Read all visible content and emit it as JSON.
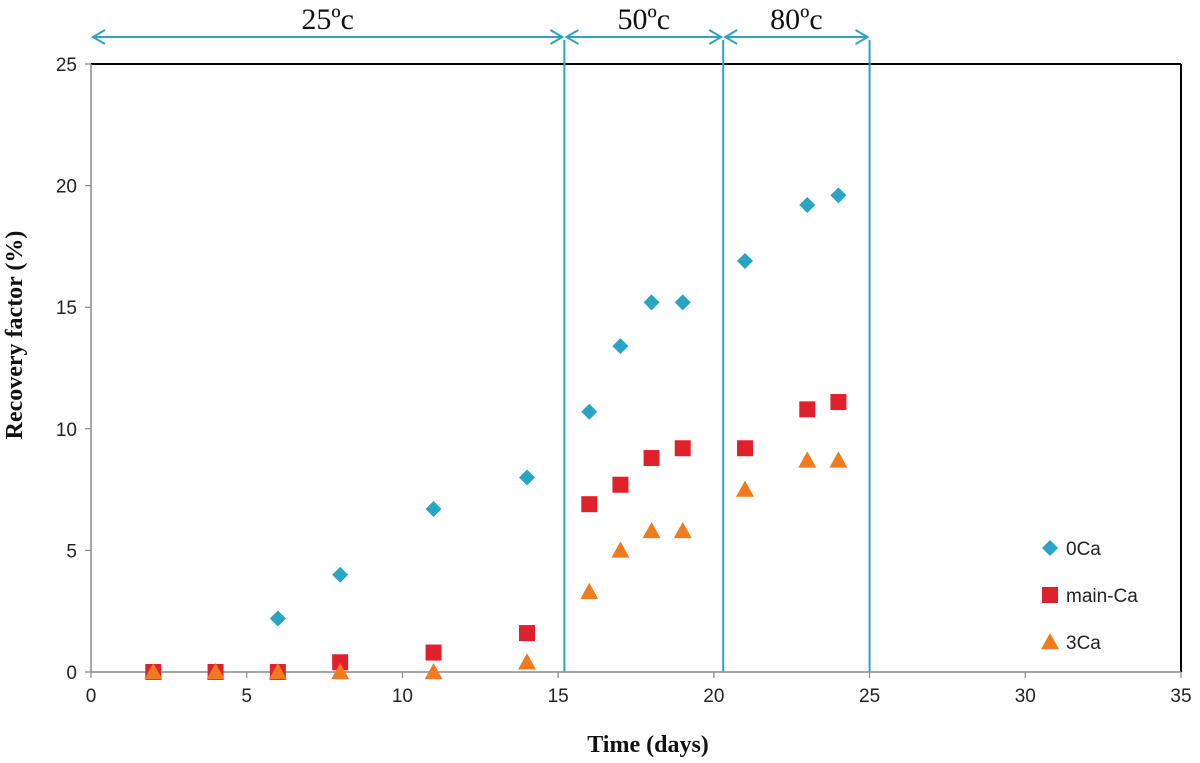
{
  "chart_data": {
    "type": "scatter",
    "xlabel": "Time (days)",
    "ylabel": "Recovery factor (%)",
    "xlim": [
      0,
      35
    ],
    "ylim": [
      0,
      25
    ],
    "x_ticks": [
      0,
      5,
      10,
      15,
      20,
      25,
      30,
      35
    ],
    "y_ticks": [
      0,
      5,
      10,
      15,
      20,
      25
    ],
    "grid": false,
    "legend_position": "right",
    "temperature_stages": [
      {
        "label": "25ºc",
        "x_start": 0,
        "x_end": 15.2
      },
      {
        "label": "50ºc",
        "x_start": 15.2,
        "x_end": 20.3
      },
      {
        "label": "80ºc",
        "x_start": 20.3,
        "x_end": 25
      }
    ],
    "stage_boundaries": [
      15.2,
      20.3,
      25
    ],
    "series": [
      {
        "name": "0Ca",
        "marker": "diamond",
        "color": "#2aa4c4",
        "x": [
          6,
          8,
          11,
          14,
          16,
          17,
          18,
          19,
          21,
          23,
          24
        ],
        "y": [
          2.2,
          4.0,
          6.7,
          8.0,
          10.7,
          13.4,
          15.2,
          15.2,
          16.9,
          19.2,
          19.6
        ]
      },
      {
        "name": "main-Ca",
        "marker": "square",
        "color": "#e0202a",
        "x": [
          2,
          4,
          6,
          8,
          11,
          14,
          16,
          17,
          18,
          19,
          21,
          23,
          24
        ],
        "y": [
          0,
          0,
          0,
          0.4,
          0.8,
          1.6,
          6.9,
          7.7,
          8.8,
          9.2,
          9.2,
          10.8,
          11.1
        ]
      },
      {
        "name": "3Ca",
        "marker": "triangle",
        "color": "#f07a1e",
        "x": [
          2,
          4,
          6,
          8,
          11,
          14,
          16,
          17,
          18,
          19,
          21,
          23,
          24
        ],
        "y": [
          0,
          0,
          0,
          0,
          0,
          0.4,
          3.3,
          5.0,
          5.8,
          5.8,
          7.5,
          8.7,
          8.7
        ]
      }
    ]
  },
  "colors": {
    "stage_line": "#2aa4c4",
    "axis": "#000000"
  }
}
